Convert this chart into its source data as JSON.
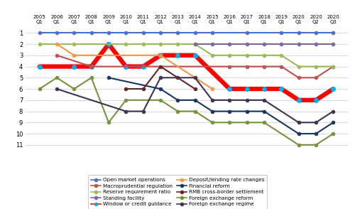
{
  "x_labels_top": [
    "2005",
    "2006",
    "2007",
    "2008",
    "2009",
    "2010",
    "2011",
    "2012",
    "2013",
    "2014",
    "2015",
    "2016",
    "2017",
    "2018",
    "2019",
    "2020",
    "2020",
    "2020"
  ],
  "x_labels_bot": [
    "Q1",
    "Q1",
    "Q1",
    "Q1",
    "Q1",
    "Q1",
    "Q1",
    "Q1",
    "Q1",
    "Q1",
    "Q1",
    "Q1",
    "Q1",
    "Q1",
    "Q1",
    "Q1",
    "Q2",
    "Q3"
  ],
  "series": [
    {
      "name": "Open market operations",
      "color": "#4472C4",
      "linewidth": 1.5,
      "marker": "o",
      "markersize": 3.5,
      "markerfacecolor": "#4472C4",
      "zorder": 4,
      "data": [
        1,
        1,
        1,
        1,
        1,
        1,
        1,
        1,
        1,
        1,
        1,
        null,
        1,
        null,
        1,
        1,
        1,
        1
      ]
    },
    {
      "name": "Macroprudential regulation",
      "color": "#C0504D",
      "linewidth": 1.5,
      "marker": "o",
      "markersize": 3.5,
      "markerfacecolor": "#C0504D",
      "zorder": 4,
      "data": [
        null,
        3,
        null,
        4,
        null,
        null,
        null,
        null,
        null,
        null,
        null,
        4,
        4,
        4,
        4,
        5,
        5,
        4
      ]
    },
    {
      "name": "Reserve requirement ratio",
      "color": "#9BBB59",
      "linewidth": 1.5,
      "marker": "o",
      "markersize": 3.5,
      "markerfacecolor": "#9BBB59",
      "zorder": 4,
      "data": [
        2,
        null,
        2,
        null,
        null,
        2,
        2,
        2,
        2,
        2,
        3,
        3,
        3,
        3,
        3,
        4,
        4,
        4
      ]
    },
    {
      "name": "Standing facility",
      "color": "#8064A2",
      "linewidth": 1.5,
      "marker": "o",
      "markersize": 3.5,
      "markerfacecolor": "#8064A2",
      "zorder": 4,
      "data": [
        null,
        null,
        null,
        null,
        null,
        null,
        null,
        null,
        null,
        2,
        2,
        2,
        2,
        2,
        2,
        2,
        2,
        2
      ]
    },
    {
      "name": "Window or credit guidance",
      "color": "#FF0000",
      "linewidth": 4.5,
      "marker": "o",
      "markersize": 4.5,
      "markerfacecolor": "#00B0F0",
      "markeredgecolor": "#00B0F0",
      "zorder": 3,
      "data": [
        4,
        null,
        4,
        4,
        2,
        4,
        4,
        3,
        3,
        3,
        null,
        6,
        6,
        6,
        6,
        7,
        7,
        6
      ]
    },
    {
      "name": "Deposit/lending rate changes",
      "color": "#F79646",
      "linewidth": 1.5,
      "marker": "o",
      "markersize": 3.5,
      "markerfacecolor": "#F79646",
      "zorder": 4,
      "data": [
        null,
        2,
        3,
        null,
        null,
        null,
        null,
        3,
        null,
        null,
        6,
        null,
        null,
        null,
        null,
        null,
        null,
        null
      ]
    },
    {
      "name": "Financial reform",
      "color": "#17375E",
      "linewidth": 1.5,
      "marker": "o",
      "markersize": 3.5,
      "markerfacecolor": "#17375E",
      "zorder": 4,
      "data": [
        null,
        null,
        null,
        null,
        5,
        null,
        null,
        6,
        7,
        7,
        8,
        8,
        8,
        8,
        null,
        10,
        10,
        9
      ]
    },
    {
      "name": "RMB cross-border settlement",
      "color": "#632523",
      "linewidth": 1.5,
      "marker": "o",
      "markersize": 3.5,
      "markerfacecolor": "#632523",
      "zorder": 4,
      "data": [
        null,
        null,
        null,
        null,
        null,
        6,
        6,
        4,
        5,
        6,
        null,
        null,
        null,
        null,
        null,
        null,
        null,
        null
      ]
    },
    {
      "name": "Foreign exchange reform",
      "color": "#76923C",
      "linewidth": 1.5,
      "marker": "o",
      "markersize": 3.5,
      "markerfacecolor": "#76923C",
      "zorder": 4,
      "data": [
        6,
        5,
        6,
        5,
        9,
        7,
        null,
        7,
        8,
        8,
        9,
        9,
        9,
        9,
        null,
        11,
        11,
        10
      ]
    },
    {
      "name": "Foreign exchange regime",
      "color": "#403151",
      "linewidth": 1.5,
      "marker": "o",
      "markersize": 3.5,
      "markerfacecolor": "#403151",
      "zorder": 4,
      "data": [
        null,
        6,
        null,
        null,
        null,
        8,
        8,
        5,
        null,
        5,
        7,
        7,
        7,
        7,
        null,
        9,
        9,
        8
      ]
    }
  ],
  "ylim_min": 0.3,
  "ylim_max": 11.5,
  "yticks": [
    1,
    2,
    3,
    4,
    5,
    6,
    7,
    8,
    9,
    10,
    11
  ],
  "fig_width": 5.0,
  "fig_height": 2.94,
  "dpi": 100,
  "legend_order": [
    "Open market operations",
    "Macroprudential regulation",
    "Reserve requirement ratio",
    "Standing facility",
    "Window or credit guidance",
    "Deposit/lending rate changes",
    "Financial reform",
    "RMB cross-border settlement",
    "Foreign exchange reform",
    "Foreign exchange regime"
  ]
}
